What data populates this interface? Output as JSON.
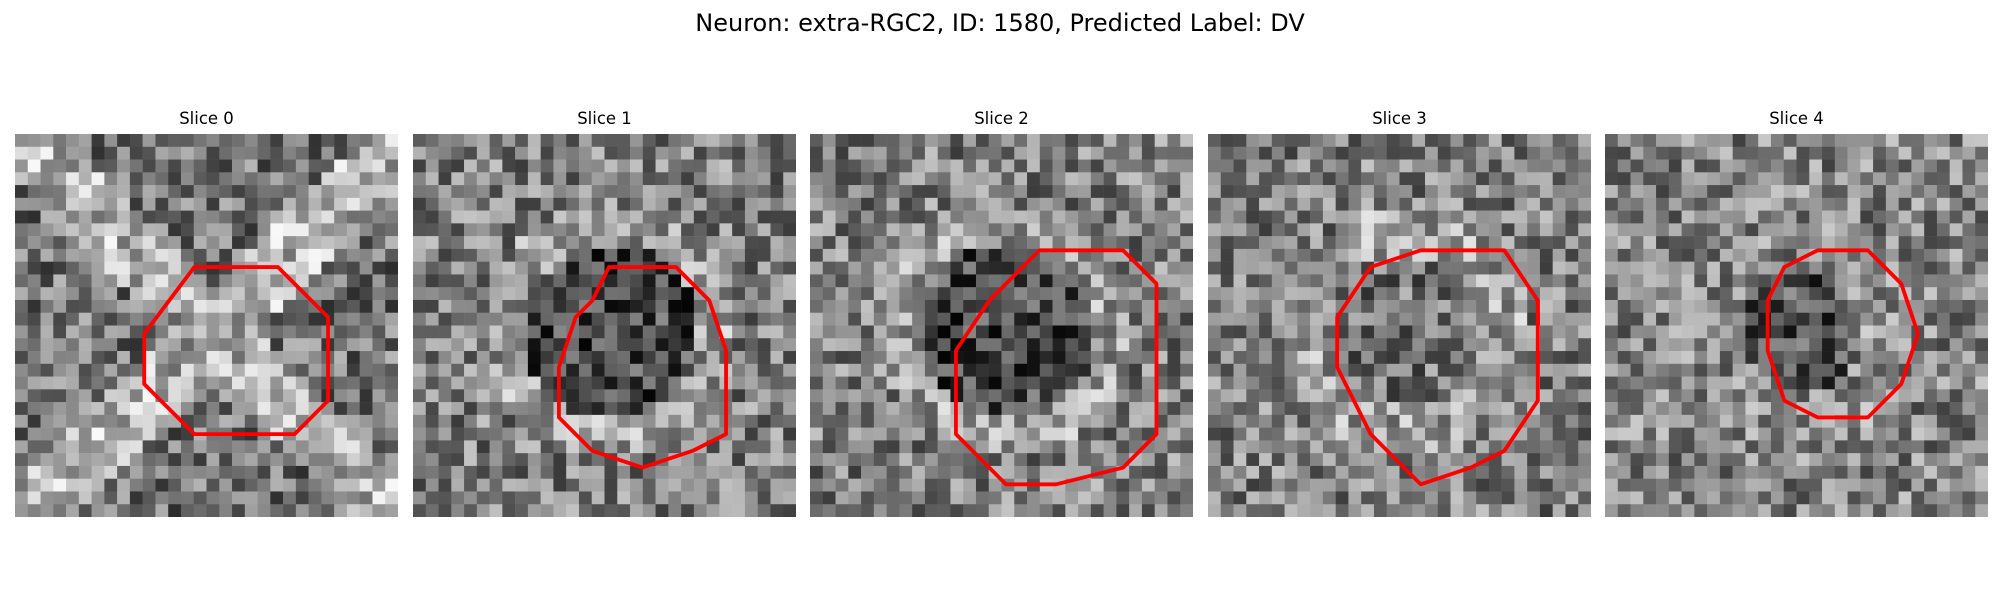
{
  "figure": {
    "title": "Neuron: extra-RGC2, ID: 1580, Predicted Label: DV",
    "contour_color": "#ff0000"
  },
  "panels": [
    {
      "title": "Slice 0",
      "seed": 11,
      "pattern": "cross",
      "contour": [
        [
          5,
          2
        ],
        [
          10,
          2
        ],
        [
          13,
          5
        ],
        [
          13,
          10
        ],
        [
          11,
          12
        ],
        [
          5,
          12
        ],
        [
          2,
          9
        ],
        [
          2,
          6
        ]
      ]
    },
    {
      "title": "Slice 1",
      "seed": 23,
      "pattern": "dark",
      "contour": [
        [
          6,
          2
        ],
        [
          10,
          2
        ],
        [
          11,
          3
        ],
        [
          12,
          4
        ],
        [
          13,
          7
        ],
        [
          13,
          12
        ],
        [
          11,
          13
        ],
        [
          8,
          14
        ],
        [
          5,
          13
        ],
        [
          3,
          11
        ],
        [
          3,
          8
        ],
        [
          4,
          5
        ],
        [
          5,
          4
        ]
      ]
    },
    {
      "title": "Slice 2",
      "seed": 37,
      "pattern": "dark",
      "contour": [
        [
          8,
          1
        ],
        [
          13,
          1
        ],
        [
          15,
          3
        ],
        [
          15,
          12
        ],
        [
          13,
          14
        ],
        [
          9,
          15
        ],
        [
          6,
          15
        ],
        [
          3,
          12
        ],
        [
          3,
          7
        ],
        [
          5,
          4
        ],
        [
          7,
          2
        ]
      ]
    },
    {
      "title": "Slice 3",
      "seed": 53,
      "pattern": "ring",
      "contour": [
        [
          7,
          1
        ],
        [
          12,
          1
        ],
        [
          14,
          4
        ],
        [
          14,
          10
        ],
        [
          12,
          13
        ],
        [
          10,
          14
        ],
        [
          7,
          15
        ],
        [
          4,
          12
        ],
        [
          2,
          8
        ],
        [
          2,
          5
        ],
        [
          4,
          2
        ]
      ]
    },
    {
      "title": "Slice 4",
      "seed": 71,
      "pattern": "dim",
      "contour": [
        [
          7,
          1
        ],
        [
          10,
          1
        ],
        [
          12,
          3
        ],
        [
          13,
          6
        ],
        [
          12,
          9
        ],
        [
          10,
          11
        ],
        [
          7,
          11
        ],
        [
          5,
          10
        ],
        [
          4,
          7
        ],
        [
          4,
          4
        ],
        [
          5,
          2
        ]
      ]
    }
  ]
}
